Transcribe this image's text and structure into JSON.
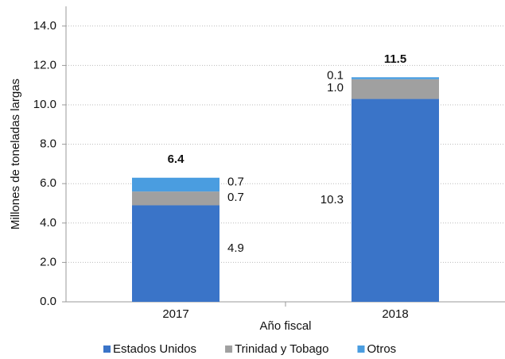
{
  "chart_data": {
    "type": "stacked_bar",
    "categories": [
      "2017",
      "2018"
    ],
    "series": [
      {
        "name": "Estados Unidos",
        "color": "#3a74c8",
        "values": [
          4.9,
          10.3
        ]
      },
      {
        "name": "Trinidad y Tobago",
        "color": "#a0a0a0",
        "values": [
          0.7,
          1.0
        ],
        "value_labels": [
          "0.7",
          "1.0"
        ]
      },
      {
        "name": "Otros",
        "color": "#4a9de0",
        "values": [
          0.7,
          0.1
        ]
      }
    ],
    "totals": [
      6.4,
      11.5
    ],
    "ylabel": "Millones de toneladas largas",
    "xlabel": "Año fiscal",
    "ylim": [
      0,
      15
    ],
    "yticks": [
      {
        "value": 0,
        "label": "0.0"
      },
      {
        "value": 2,
        "label": "2.0"
      },
      {
        "value": 4,
        "label": "4.0"
      },
      {
        "value": 6,
        "label": "6.0"
      },
      {
        "value": 8,
        "label": "8.0"
      },
      {
        "value": 10,
        "label": "10.0"
      },
      {
        "value": 12,
        "label": "12.0"
      },
      {
        "value": 14,
        "label": "14.0"
      }
    ],
    "grid": true,
    "legend": "bottom"
  }
}
